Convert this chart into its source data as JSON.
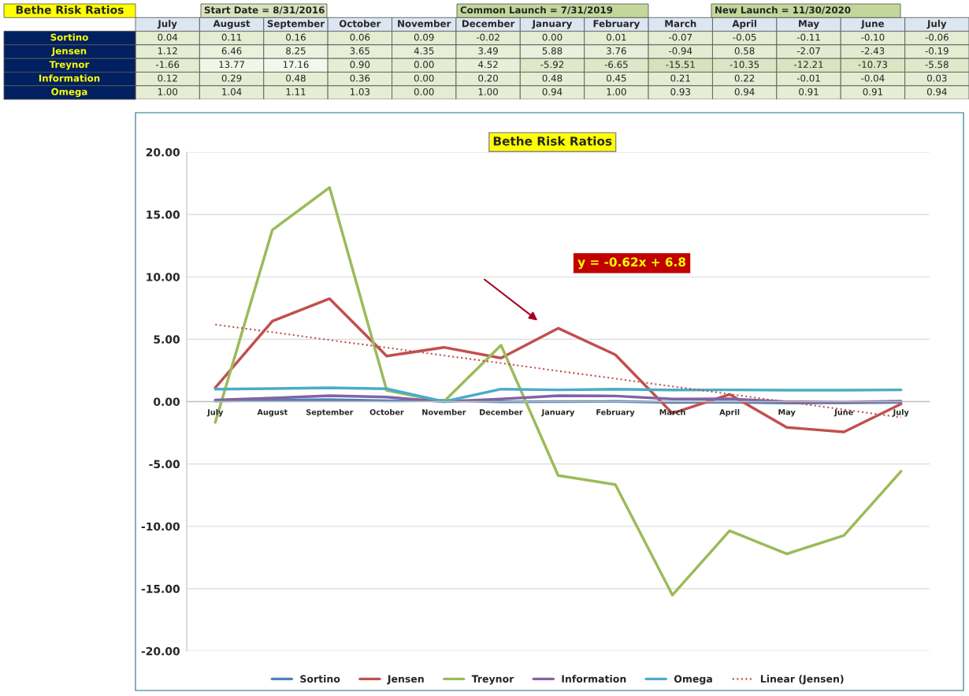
{
  "chart_data": [
    {
      "type": "heatmap",
      "title": "Bethe Risk Ratios",
      "categories": [
        "July",
        "August",
        "September",
        "October",
        "November",
        "December",
        "January",
        "February",
        "March",
        "April",
        "May",
        "June",
        "July"
      ],
      "y_categories": [
        "Sortino",
        "Jensen",
        "Treynor",
        "Information",
        "Omega"
      ],
      "cells": [
        [
          0.04,
          0.11,
          0.16,
          0.06,
          0.09,
          -0.02,
          0.0,
          0.01,
          -0.07,
          -0.05,
          -0.11,
          -0.1,
          -0.06
        ],
        [
          1.12,
          6.46,
          8.25,
          3.65,
          4.35,
          3.49,
          5.88,
          3.76,
          -0.94,
          0.58,
          -2.07,
          -2.43,
          -0.19
        ],
        [
          -1.66,
          13.77,
          17.16,
          0.9,
          0.0,
          4.52,
          -5.92,
          -6.65,
          -15.51,
          -10.35,
          -12.21,
          -10.73,
          -5.58
        ],
        [
          0.12,
          0.29,
          0.48,
          0.36,
          0.0,
          0.2,
          0.48,
          0.45,
          0.21,
          0.22,
          -0.01,
          -0.04,
          0.03
        ],
        [
          1.0,
          1.04,
          1.11,
          1.03,
          0.0,
          1.0,
          0.94,
          1.0,
          0.93,
          0.94,
          0.91,
          0.91,
          0.94
        ]
      ],
      "cell_labels": [
        [
          "0.04",
          "0.11",
          "0.16",
          "0.06",
          "0.09",
          "-0.02",
          "0.00",
          "0.01",
          "-0.07",
          "-0.05",
          "-0.11",
          "-0.10",
          "-0.06"
        ],
        [
          "1.12",
          "6.46",
          "8.25",
          "3.65",
          "4.35",
          "3.49",
          "5.88",
          "3.76",
          "-0.94",
          "0.58",
          "-2.07",
          "-2.43",
          "-0.19"
        ],
        [
          "-1.66",
          "13.77",
          "17.16",
          "0.90",
          "0.00",
          "4.52",
          "-5.92",
          "-6.65",
          "-15.51",
          "-10.35",
          "-12.21",
          "-10.73",
          "-5.58"
        ],
        [
          "0.12",
          "0.29",
          "0.48",
          "0.36",
          "0.00",
          "0.20",
          "0.48",
          "0.45",
          "0.21",
          "0.22",
          "-0.01",
          "-0.04",
          "0.03"
        ],
        [
          "1.00",
          "1.04",
          "1.11",
          "1.03",
          "0.00",
          "1.00",
          "0.94",
          "1.00",
          "0.93",
          "0.94",
          "0.91",
          "0.91",
          "0.94"
        ]
      ],
      "annotations": [
        "Start Date = 8/31/2016",
        "Common Launch = 7/31/2019",
        "New Launch = 11/30/2020"
      ]
    },
    {
      "type": "line",
      "title": "Bethe Risk Ratios",
      "categories": [
        "July",
        "August",
        "September",
        "October",
        "November",
        "December",
        "January",
        "February",
        "March",
        "April",
        "May",
        "June",
        "July"
      ],
      "series": [
        {
          "name": "Sortino",
          "color": "#4f81bd",
          "values": [
            0.04,
            0.11,
            0.16,
            0.06,
            0.09,
            -0.02,
            0.0,
            0.01,
            -0.07,
            -0.05,
            -0.11,
            -0.1,
            -0.06
          ]
        },
        {
          "name": "Jensen",
          "color": "#c0504d",
          "values": [
            1.12,
            6.46,
            8.25,
            3.65,
            4.35,
            3.49,
            5.88,
            3.76,
            -0.94,
            0.58,
            -2.07,
            -2.43,
            -0.19
          ]
        },
        {
          "name": "Treynor",
          "color": "#9bbb59",
          "values": [
            -1.66,
            13.77,
            17.16,
            0.9,
            0.0,
            4.52,
            -5.92,
            -6.65,
            -15.51,
            -10.35,
            -12.21,
            -10.73,
            -5.58
          ]
        },
        {
          "name": "Information",
          "color": "#8064a2",
          "values": [
            0.12,
            0.29,
            0.48,
            0.36,
            0.0,
            0.2,
            0.48,
            0.45,
            0.21,
            0.22,
            -0.01,
            -0.04,
            0.03
          ]
        },
        {
          "name": "Omega",
          "color": "#4bacc6",
          "values": [
            1.0,
            1.04,
            1.11,
            1.03,
            0.0,
            1.0,
            0.94,
            1.0,
            0.93,
            0.94,
            0.91,
            0.91,
            0.94
          ]
        },
        {
          "name": "Linear (Jensen)",
          "color": "#c0504d",
          "line_style": "dotted",
          "values": [
            6.18,
            5.56,
            4.94,
            4.32,
            3.7,
            3.08,
            2.46,
            1.84,
            1.22,
            0.6,
            -0.02,
            -0.64,
            -1.26
          ]
        }
      ],
      "ylim": [
        -20,
        20
      ],
      "yticks": [
        {
          "value": -20,
          "label": "-20.00"
        },
        {
          "value": -15,
          "label": "-15.00"
        },
        {
          "value": -10,
          "label": "-10.00"
        },
        {
          "value": -5,
          "label": "-5.00"
        },
        {
          "value": 0,
          "label": "0.00"
        },
        {
          "value": 5,
          "label": "5.00"
        },
        {
          "value": 10,
          "label": "10.00"
        },
        {
          "value": 15,
          "label": "15.00"
        },
        {
          "value": 20,
          "label": "20.00"
        }
      ],
      "grid": "y",
      "legend": "bottom",
      "line_style": "solid",
      "annotations": [
        "y = -0.62x + 6.8"
      ]
    }
  ]
}
